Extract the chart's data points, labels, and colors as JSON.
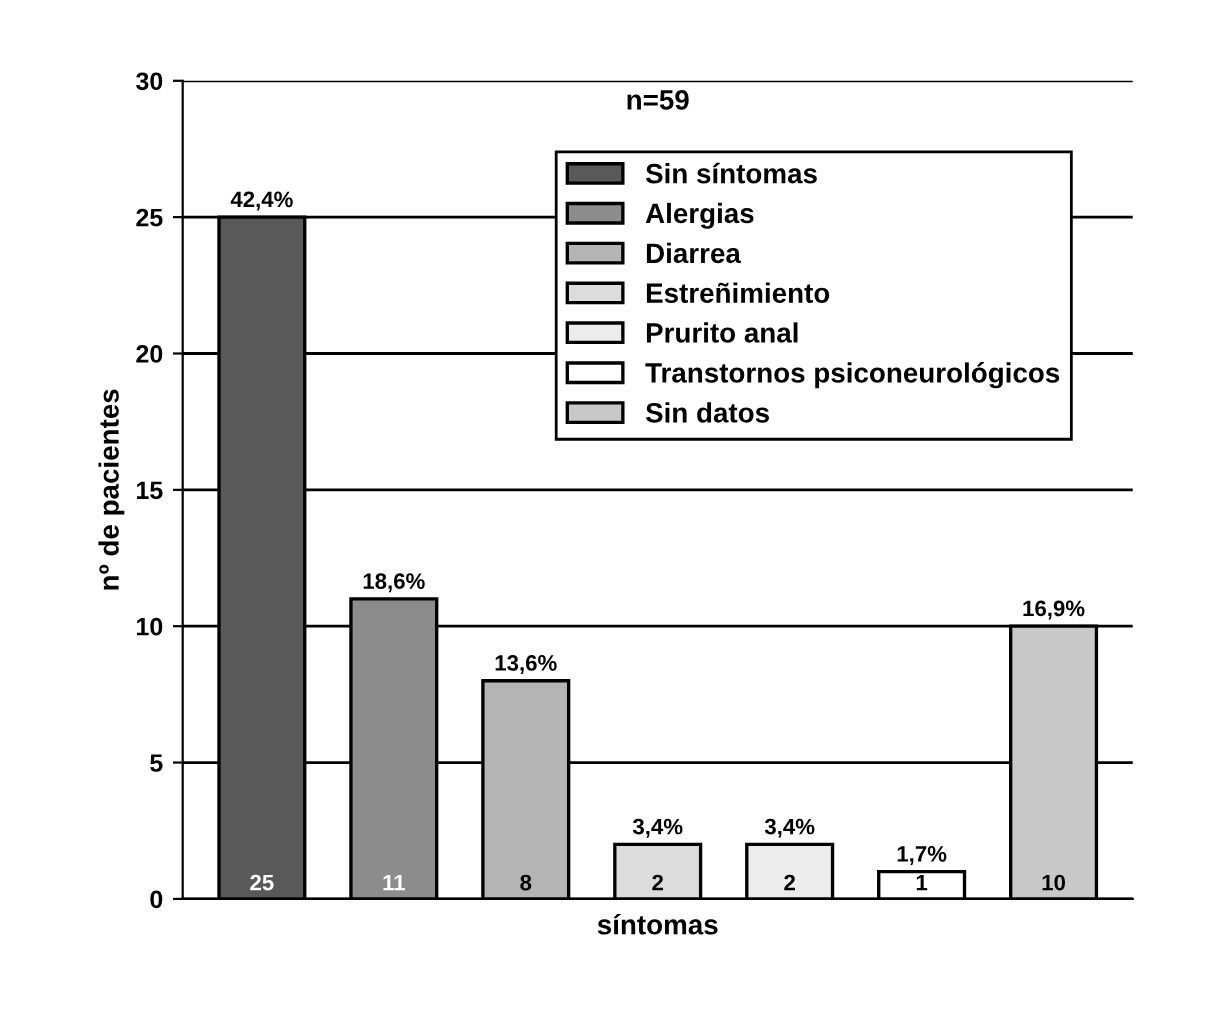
{
  "chart_data": {
    "type": "bar",
    "title": "n=59",
    "xlabel": "síntomas",
    "ylabel": "nº de pacientes",
    "categories": [
      null,
      null,
      null,
      null,
      null,
      null,
      null
    ],
    "series": [
      {
        "name": "Sin síntomas",
        "color": "#595959",
        "values": [
          25,
          null,
          null,
          null,
          null,
          null,
          null
        ],
        "value_labels": [
          "25",
          null,
          null,
          null,
          null,
          null,
          null
        ]
      },
      {
        "name": "Alergias",
        "color": "#8c8c8c",
        "values": [
          null,
          11,
          null,
          null,
          null,
          null,
          null
        ],
        "value_labels": [
          null,
          "11",
          null,
          null,
          null,
          null,
          null
        ]
      },
      {
        "name": "Diarrea",
        "color": "#b4b4b4",
        "values": [
          null,
          null,
          8,
          null,
          null,
          null,
          null
        ],
        "value_labels": [
          null,
          null,
          "8",
          null,
          null,
          null,
          null
        ]
      },
      {
        "name": "Estreñimiento",
        "color": "#dcdcdc",
        "values": [
          null,
          null,
          null,
          2,
          null,
          null,
          null
        ],
        "value_labels": [
          null,
          null,
          null,
          "2",
          null,
          null,
          null
        ]
      },
      {
        "name": "Prurito anal",
        "color": "#ececec",
        "values": [
          null,
          null,
          null,
          null,
          2,
          null,
          null
        ],
        "value_labels": [
          null,
          null,
          null,
          null,
          "2",
          null,
          null
        ]
      },
      {
        "name": "Transtornos psiconeurológicos",
        "color": "#ffffff",
        "values": [
          null,
          null,
          null,
          null,
          null,
          1,
          null
        ],
        "value_labels": [
          null,
          null,
          null,
          null,
          null,
          "1",
          null
        ]
      },
      {
        "name": "Sin datos",
        "color": "#c8c8c8",
        "values": [
          null,
          null,
          null,
          null,
          null,
          null,
          10
        ],
        "value_labels": [
          null,
          null,
          null,
          null,
          null,
          null,
          "10"
        ]
      }
    ],
    "annotations": [
      {
        "text": "42,4%",
        "y": 25
      },
      {
        "text": "18,6%",
        "y": 11
      },
      {
        "text": "13,6%",
        "y": 8
      },
      {
        "text": "3,4%",
        "y": 2
      },
      {
        "text": "3,4%",
        "y": 2
      },
      {
        "text": "1,7%",
        "y": 1
      },
      {
        "text": "16,9%",
        "y": 10
      }
    ],
    "ylim": [
      0,
      30
    ],
    "yticks": [
      0,
      5,
      10,
      15,
      20,
      25,
      30
    ],
    "grid": "y",
    "legend": "top right"
  }
}
